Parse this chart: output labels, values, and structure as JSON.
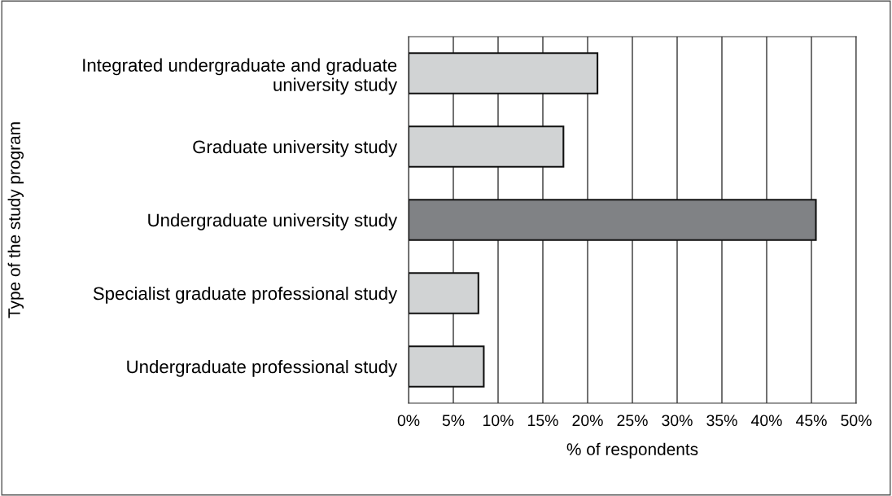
{
  "chart_data": {
    "type": "bar",
    "orientation": "horizontal",
    "xlabel": "% of respondents",
    "ylabel": "Type of the study program",
    "categories": [
      "Integrated undergraduate and graduate\nuniversity study",
      "Graduate university study",
      "Undergraduate university study",
      "Specialist graduate professional study",
      "Undergraduate professional study"
    ],
    "values": [
      21.1,
      17.3,
      45.5,
      7.8,
      8.4
    ],
    "colors": [
      "#d1d3d4",
      "#d1d3d4",
      "#808285",
      "#d1d3d4",
      "#d1d3d4"
    ],
    "xlim": [
      0,
      50
    ],
    "xticks": [
      {
        "value": 0,
        "label": "0%"
      },
      {
        "value": 5,
        "label": "5%"
      },
      {
        "value": 10,
        "label": "10%"
      },
      {
        "value": 15,
        "label": "15%"
      },
      {
        "value": 20,
        "label": "20%"
      },
      {
        "value": 25,
        "label": "25%"
      },
      {
        "value": 30,
        "label": "30%"
      },
      {
        "value": 35,
        "label": "35%"
      },
      {
        "value": 40,
        "label": "40%"
      },
      {
        "value": 45,
        "label": "45%"
      },
      {
        "value": 50,
        "label": "50%"
      }
    ],
    "grid": "x"
  }
}
